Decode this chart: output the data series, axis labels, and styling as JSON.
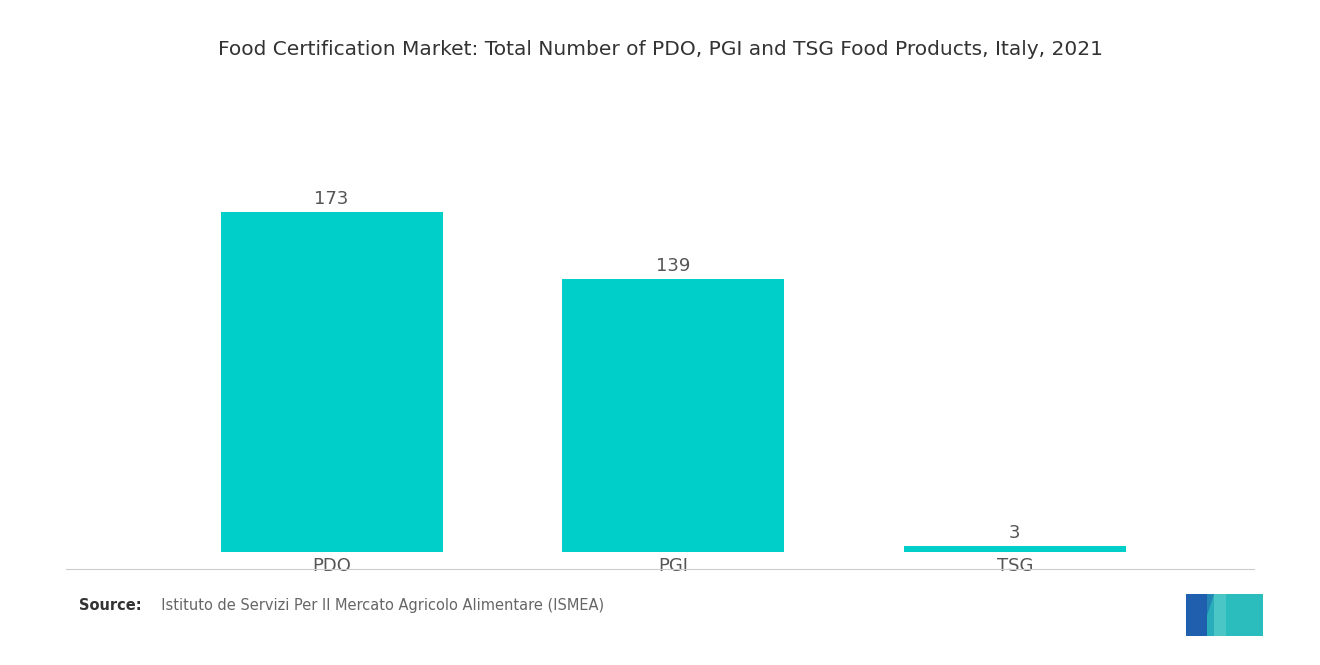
{
  "title": "Food Certification Market: Total Number of PDO, PGI and TSG Food Products, Italy, 2021",
  "categories": [
    "PDO",
    "PGI",
    "TSG"
  ],
  "values": [
    173,
    139,
    3
  ],
  "bar_color": "#00CEC9",
  "background_color": "#ffffff",
  "title_fontsize": 14.5,
  "label_fontsize": 13,
  "value_fontsize": 13,
  "source_label": "Source:",
  "source_rest": "  Istituto de Servizi Per Il Mercato Agricolo Alimentare (ISMEA)",
  "ylim": [
    0,
    210
  ],
  "bar_width": 0.65,
  "x_positions": [
    1,
    2,
    3
  ],
  "xlim": [
    0.3,
    3.7
  ]
}
